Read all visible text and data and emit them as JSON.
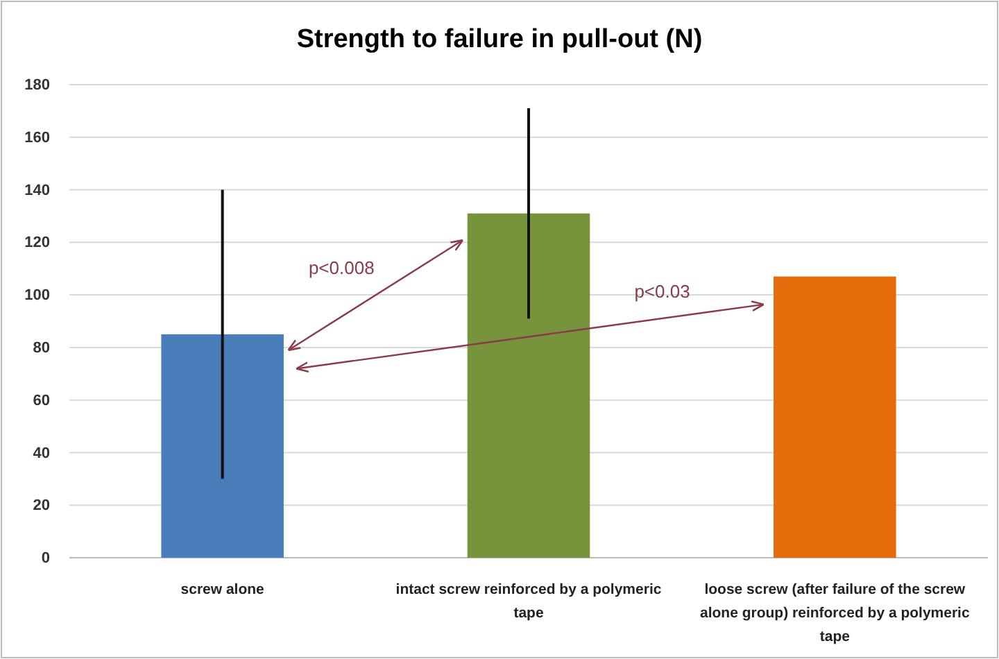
{
  "chart_data": {
    "type": "bar",
    "title": "Strength to failure in pull-out (N)",
    "categories": [
      "screw alone",
      "intact screw reinforced by a polymeric tape",
      "loose screw (after failure of the screw alone group) reinforced by a polymeric tape"
    ],
    "values": [
      85,
      131,
      107
    ],
    "colors": [
      "#4a7ebb",
      "#77933c",
      "#e46c0a"
    ],
    "errors": [
      [
        30,
        140
      ],
      [
        91,
        171
      ],
      null
    ],
    "ylim": [
      0,
      180
    ],
    "yticks": [
      0,
      20,
      40,
      60,
      80,
      100,
      120,
      140,
      160,
      180
    ],
    "grid": "y",
    "annotations": [
      "p<0.008",
      "p<0.03"
    ]
  }
}
